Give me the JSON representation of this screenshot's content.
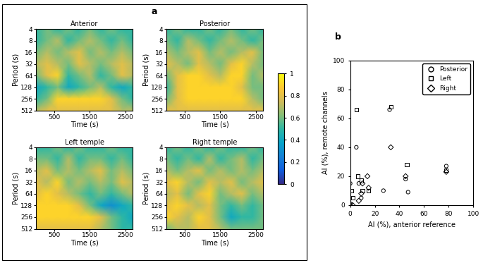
{
  "chart_data": [
    {
      "type": "heatmap",
      "panel": "a",
      "title": "Anterior",
      "x_label": "Time (s)",
      "y_label": "Period (s)",
      "log": "y",
      "xlim": [
        0,
        2700
      ],
      "xticks": [
        500,
        1500,
        2500
      ],
      "ylim": [
        512,
        4
      ],
      "yticks": [
        4,
        8,
        16,
        32,
        64,
        128,
        256,
        512
      ],
      "x": [
        0,
        300,
        600,
        900,
        1200,
        1500,
        1800,
        2100,
        2400,
        2700
      ],
      "y": [
        4,
        8,
        16,
        32,
        64,
        128,
        256,
        512
      ],
      "cells": [
        [
          0.5,
          0.6,
          0.5,
          0.6,
          0.5,
          0.6,
          0.5,
          0.6,
          0.5,
          0.5
        ],
        [
          0.5,
          0.6,
          0.7,
          0.5,
          0.6,
          0.7,
          0.6,
          0.5,
          0.6,
          0.5
        ],
        [
          0.6,
          0.7,
          0.6,
          0.7,
          0.8,
          0.6,
          0.7,
          0.6,
          0.7,
          0.6
        ],
        [
          0.7,
          0.8,
          0.7,
          0.6,
          0.8,
          0.7,
          0.6,
          0.7,
          0.8,
          0.7
        ],
        [
          0.6,
          0.8,
          0.9,
          0.5,
          0.6,
          0.7,
          0.5,
          0.6,
          0.8,
          0.7
        ],
        [
          0.4,
          0.5,
          0.6,
          0.4,
          0.5,
          0.6,
          0.7,
          0.5,
          0.4,
          0.5
        ],
        [
          0.5,
          0.6,
          0.9,
          0.9,
          0.9,
          0.9,
          0.9,
          0.8,
          0.6,
          0.5
        ],
        [
          0.7,
          0.8,
          0.8,
          0.8,
          0.8,
          0.8,
          0.8,
          0.8,
          0.7,
          0.7
        ]
      ]
    },
    {
      "type": "heatmap",
      "title": "Posterior",
      "x_label": "Time (s)",
      "y_label": "Period (s)",
      "log": "y",
      "xlim": [
        0,
        2700
      ],
      "xticks": [
        500,
        1500,
        2500
      ],
      "ylim": [
        512,
        4
      ],
      "yticks": [
        4,
        8,
        16,
        32,
        64,
        128,
        256,
        512
      ],
      "x": [
        0,
        300,
        600,
        900,
        1200,
        1500,
        1800,
        2100,
        2400,
        2700
      ],
      "y": [
        4,
        8,
        16,
        32,
        64,
        128,
        256,
        512
      ],
      "cells": [
        [
          0.5,
          0.6,
          0.5,
          0.5,
          0.6,
          0.5,
          0.6,
          0.5,
          0.6,
          0.5
        ],
        [
          0.6,
          0.5,
          0.7,
          0.6,
          0.5,
          0.6,
          0.7,
          0.6,
          0.5,
          0.6
        ],
        [
          0.7,
          0.6,
          0.7,
          0.8,
          0.6,
          0.7,
          0.6,
          0.7,
          0.8,
          0.6
        ],
        [
          0.8,
          0.7,
          0.6,
          0.8,
          0.7,
          0.6,
          0.8,
          0.9,
          0.7,
          0.6
        ],
        [
          0.6,
          0.8,
          0.9,
          0.9,
          0.8,
          0.7,
          0.9,
          0.9,
          0.6,
          0.7
        ],
        [
          0.5,
          0.8,
          0.9,
          0.9,
          0.9,
          0.9,
          0.9,
          0.8,
          0.6,
          0.6
        ],
        [
          0.6,
          0.8,
          0.9,
          0.9,
          0.9,
          0.9,
          0.9,
          0.9,
          0.7,
          0.6
        ],
        [
          0.8,
          0.8,
          0.8,
          0.8,
          0.8,
          0.8,
          0.8,
          0.8,
          0.8,
          0.8
        ]
      ]
    },
    {
      "type": "heatmap",
      "title": "Left temple",
      "x_label": "Time (s)",
      "y_label": "Period (s)",
      "log": "y",
      "xlim": [
        0,
        2700
      ],
      "xticks": [
        500,
        1500,
        2500
      ],
      "ylim": [
        512,
        4
      ],
      "yticks": [
        4,
        8,
        16,
        32,
        64,
        128,
        256,
        512
      ],
      "x": [
        0,
        300,
        600,
        900,
        1200,
        1500,
        1800,
        2100,
        2400,
        2700
      ],
      "y": [
        4,
        8,
        16,
        32,
        64,
        128,
        256,
        512
      ],
      "cells": [
        [
          0.5,
          0.5,
          0.6,
          0.5,
          0.6,
          0.5,
          0.5,
          0.6,
          0.5,
          0.5
        ],
        [
          0.6,
          0.6,
          0.5,
          0.7,
          0.5,
          0.6,
          0.6,
          0.5,
          0.6,
          0.5
        ],
        [
          0.7,
          0.8,
          0.6,
          0.7,
          0.6,
          0.7,
          0.8,
          0.6,
          0.7,
          0.6
        ],
        [
          0.8,
          0.7,
          0.9,
          0.6,
          0.7,
          0.6,
          0.7,
          0.6,
          0.8,
          0.7
        ],
        [
          0.8,
          0.9,
          0.8,
          0.7,
          0.6,
          0.5,
          0.6,
          0.5,
          0.6,
          0.7
        ],
        [
          0.9,
          0.9,
          0.9,
          0.9,
          0.8,
          0.6,
          0.4,
          0.3,
          0.4,
          0.5
        ],
        [
          0.9,
          0.9,
          0.9,
          0.9,
          0.9,
          0.9,
          0.8,
          0.6,
          0.5,
          0.4
        ],
        [
          0.8,
          0.8,
          0.8,
          0.8,
          0.8,
          0.8,
          0.7,
          0.6,
          0.5,
          0.5
        ]
      ]
    },
    {
      "type": "heatmap",
      "title": "Right temple",
      "x_label": "Time (s)",
      "y_label": "Period (s)",
      "log": "y",
      "xlim": [
        0,
        2700
      ],
      "xticks": [
        500,
        1500,
        2500
      ],
      "ylim": [
        512,
        4
      ],
      "yticks": [
        4,
        8,
        16,
        32,
        64,
        128,
        256,
        512
      ],
      "x": [
        0,
        300,
        600,
        900,
        1200,
        1500,
        1800,
        2100,
        2400,
        2700
      ],
      "y": [
        4,
        8,
        16,
        32,
        64,
        128,
        256,
        512
      ],
      "cells": [
        [
          0.5,
          0.6,
          0.5,
          0.6,
          0.5,
          0.6,
          0.5,
          0.5,
          0.6,
          0.5
        ],
        [
          0.6,
          0.5,
          0.6,
          0.5,
          0.7,
          0.5,
          0.6,
          0.7,
          0.5,
          0.6
        ],
        [
          0.7,
          0.6,
          0.7,
          0.8,
          0.6,
          0.7,
          0.6,
          0.7,
          0.6,
          0.7
        ],
        [
          0.8,
          0.9,
          0.7,
          0.6,
          0.8,
          0.7,
          0.8,
          0.6,
          0.7,
          0.8
        ],
        [
          0.7,
          0.8,
          0.6,
          0.8,
          0.9,
          0.6,
          0.7,
          0.8,
          0.6,
          0.7
        ],
        [
          0.8,
          0.9,
          0.8,
          0.7,
          0.8,
          0.6,
          0.5,
          0.6,
          0.5,
          0.6
        ],
        [
          0.9,
          0.8,
          0.7,
          0.9,
          0.8,
          0.6,
          0.4,
          0.5,
          0.5,
          0.6
        ],
        [
          0.6,
          0.7,
          0.7,
          0.8,
          0.8,
          0.7,
          0.6,
          0.6,
          0.6,
          0.6
        ]
      ],
      "colorbar": {
        "range": [
          0,
          1
        ],
        "ticks": [
          0,
          0.2,
          0.4,
          0.6,
          0.8,
          1
        ]
      }
    },
    {
      "type": "scatter",
      "panel": "b",
      "x_label": "AI (%), anterior reference",
      "y_label": "AI (%), remote channels",
      "xlim": [
        0,
        100
      ],
      "xticks": [
        0,
        20,
        40,
        60,
        80,
        100
      ],
      "ylim": [
        0,
        100
      ],
      "yticks": [
        0,
        20,
        40,
        60,
        80,
        100
      ],
      "legend": "upper right",
      "series": [
        {
          "name": "Posterior",
          "marker": "circle",
          "color": "#000000",
          "x": [
            0,
            0,
            5,
            7,
            9,
            27,
            32,
            45,
            47,
            78
          ],
          "values": [
            0,
            15,
            40,
            15,
            5,
            10,
            66,
            18,
            9,
            27
          ]
        },
        {
          "name": "Left",
          "marker": "square",
          "color": "#000000",
          "x": [
            1,
            5,
            6,
            9,
            10,
            15,
            33,
            46,
            78,
            2
          ],
          "values": [
            10,
            66,
            20,
            17,
            10,
            10,
            68,
            28,
            24,
            5
          ]
        },
        {
          "name": "Right",
          "marker": "diamond",
          "color": "#000000",
          "x": [
            0,
            7,
            10,
            14,
            33,
            45,
            78,
            9,
            15,
            2
          ],
          "values": [
            1,
            3,
            15,
            20,
            40,
            20,
            23,
            8,
            12,
            0
          ]
        }
      ]
    }
  ]
}
